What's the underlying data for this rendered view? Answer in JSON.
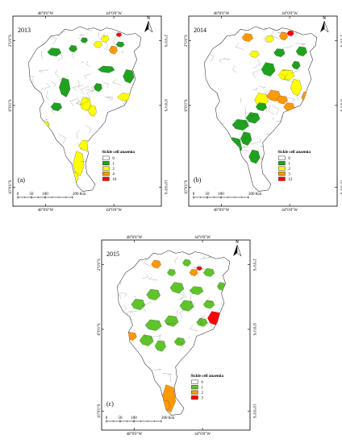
{
  "panels": [
    {
      "id": "a",
      "year": "2013",
      "label": "(a)",
      "lon_top_left": "48°0'0\"W",
      "lon_top_right": "44°0'0\"W",
      "lon_bottom_left": "48°0'0\"W",
      "lon_bottom_right": "44°0'0\"W",
      "lat_top": "2°0'0\"S",
      "lat_mid": "6°0'0\"S",
      "lat_bottom": "10°0'0\"S",
      "legend_title": "Sickle cell anaemia",
      "legend": [
        {
          "value": "0",
          "color": "#ffffff"
        },
        {
          "value": "1",
          "color": "#1fa21f"
        },
        {
          "value": "2",
          "color": "#ffff00"
        },
        {
          "value": "4",
          "color": "#ff9900"
        },
        {
          "value": "10",
          "color": "#ff0000"
        }
      ],
      "scale": [
        "0",
        "50",
        "100",
        "200 Km"
      ],
      "north": "N"
    },
    {
      "id": "b",
      "year": "2014",
      "label": "(b)",
      "lon_top_left": "48°0'0\"W",
      "lon_top_right": "44°0'0\"W",
      "lon_bottom_left": "48°0'0\"W",
      "lon_bottom_right": "44°0'0\"W",
      "lat_top": "2°0'0\"S",
      "lat_mid": "6°0'0\"S",
      "lat_bottom": "10°0'0\"S",
      "legend_title": "Sickle cell anaemia",
      "legend": [
        {
          "value": "0",
          "color": "#ffffff"
        },
        {
          "value": "1",
          "color": "#1fa21f"
        },
        {
          "value": "2",
          "color": "#ffff00"
        },
        {
          "value": "3",
          "color": "#ff9900"
        },
        {
          "value": "12",
          "color": "#ff0000"
        }
      ],
      "scale": [
        "0",
        "50",
        "100",
        "200 Km"
      ],
      "north": "N"
    },
    {
      "id": "c",
      "year": "2015",
      "label": "(c)",
      "lon_top_left": "48°0'0\"W",
      "lon_top_right": "44°0'0\"W",
      "lon_bottom_left": "48°0'0\"W",
      "lon_bottom_right": "44°0'0\"W",
      "lat_top": "2°0'0\"S",
      "lat_mid": "6°0'0\"S",
      "lat_bottom": "10°0'0\"S",
      "legend_title": "Sickle cell anaemia",
      "legend": [
        {
          "value": "0",
          "color": "#ffffff"
        },
        {
          "value": "1",
          "color": "#5ec42a"
        },
        {
          "value": "2",
          "color": "#ff9900"
        },
        {
          "value": "3",
          "color": "#ff0000"
        }
      ],
      "scale": [
        "0",
        "50",
        "100",
        "200 Km"
      ],
      "north": "N"
    }
  ]
}
